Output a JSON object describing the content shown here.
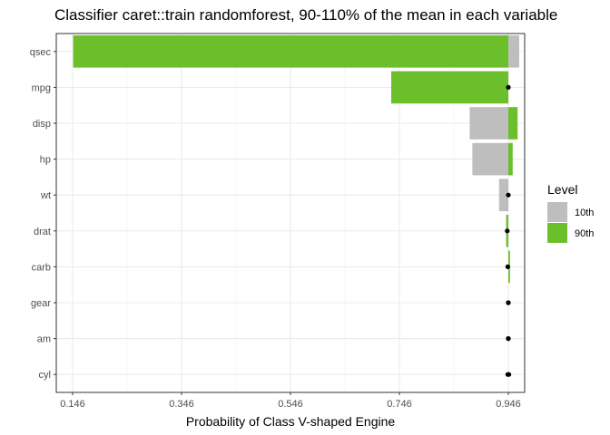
{
  "chart_data": {
    "type": "bar",
    "title": "Classifier caret::train randomforest, 90-110% of the mean in each variable",
    "xlabel": "Probability of Class V-shaped Engine",
    "ylabel": "",
    "xlim": [
      0.116,
      0.976
    ],
    "x_ticks": [
      0.146,
      0.346,
      0.546,
      0.746,
      0.946
    ],
    "x_tick_labels": [
      "0.146",
      "0.346",
      "0.546",
      "0.746",
      "0.946"
    ],
    "baseline": 0.946,
    "grid": true,
    "legend": {
      "title": "Level",
      "placement": "right",
      "entries": [
        "10th",
        "90th"
      ]
    },
    "colors": {
      "10th": "#bebebe",
      "90th": "#6abf2a",
      "point": "#000000"
    },
    "categories": [
      "qsec",
      "mpg",
      "disp",
      "hp",
      "wt",
      "drat",
      "carb",
      "gear",
      "am",
      "cyl"
    ],
    "series": [
      {
        "name": "10th",
        "values": [
          0.966,
          0.946,
          0.875,
          0.88,
          0.929,
          0.944,
          0.945,
          0.946,
          0.946,
          0.945
        ]
      },
      {
        "name": "90th",
        "values": [
          0.147,
          0.731,
          0.963,
          0.954,
          0.946,
          0.942,
          0.949,
          0.946,
          0.946,
          0.947
        ]
      }
    ]
  }
}
